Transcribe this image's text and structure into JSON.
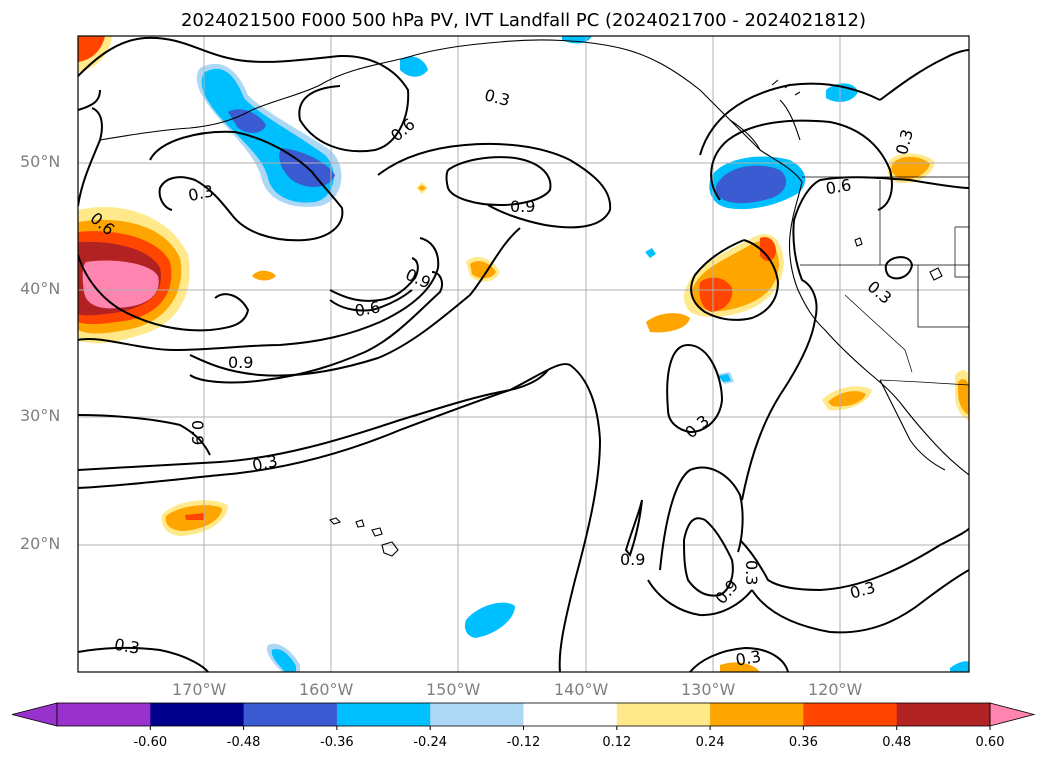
{
  "title": "2024021500 F000 500 hPa PV, IVT Landfall PC (2024021700 - 2024021812)",
  "lat_labels": [
    "50°N",
    "40°N",
    "30°N",
    "20°N"
  ],
  "lon_labels": [
    "170°W",
    "160°W",
    "150°W",
    "140°W",
    "130°W",
    "120°W"
  ],
  "contour_labels": [
    "0.3",
    "0.6",
    "0.3",
    "0.9",
    "0.9",
    "0.6",
    "0.6",
    "0.9",
    "0.9",
    "0.3",
    "0.6",
    "0.3",
    "0.3",
    "0.3",
    "0.9",
    "0.9",
    "0.3",
    "0.3",
    "0.3"
  ],
  "colorbar": {
    "labels": [
      "-0.60",
      "-0.48",
      "-0.36",
      "-0.24",
      "-0.12",
      "0.12",
      "0.24",
      "0.36",
      "0.48",
      "0.60"
    ],
    "colors": [
      "#9932cc",
      "#00008b",
      "#3a5bd1",
      "#00bfff",
      "#add8f5",
      "#ffffff",
      "#ffe98a",
      "#ffa500",
      "#ff4500",
      "#b22222",
      "#ff85b0"
    ]
  }
}
